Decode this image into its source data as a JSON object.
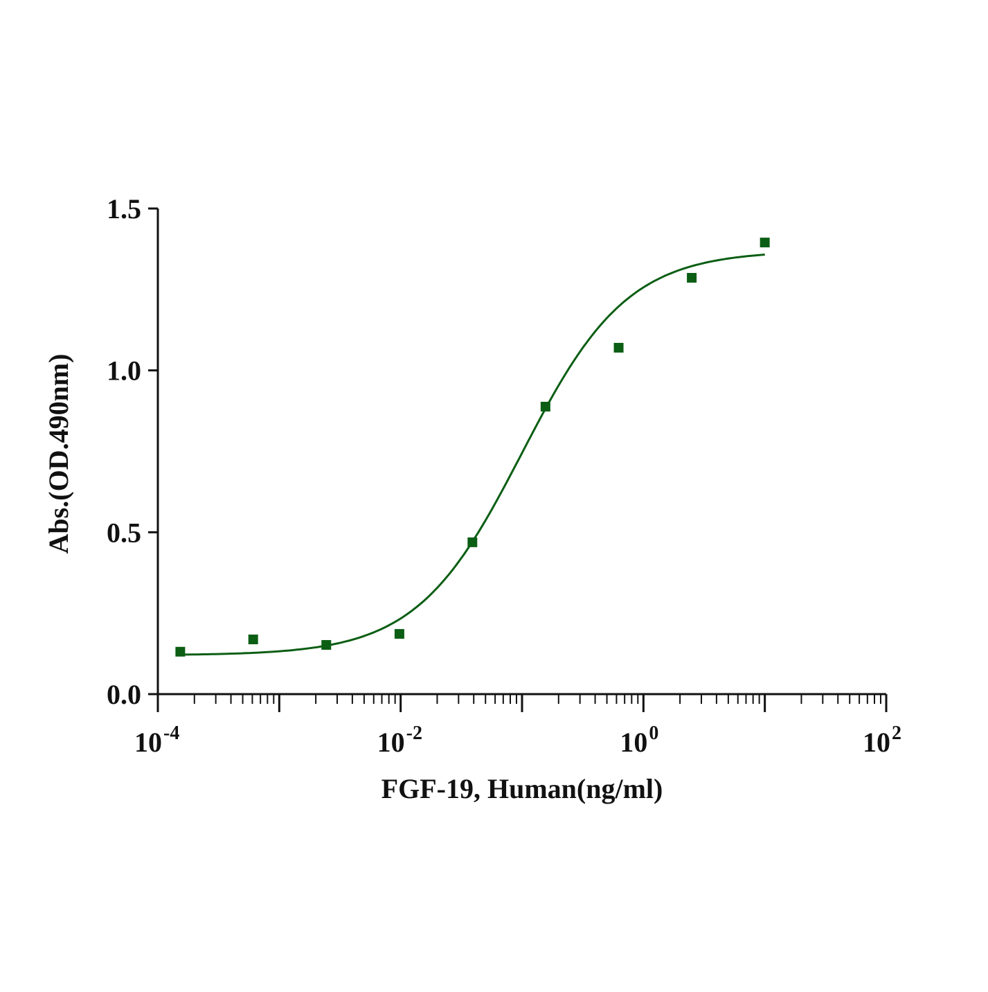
{
  "chart_data": {
    "type": "scatter",
    "title": "",
    "xlabel": "FGF-19, Human(ng/ml)",
    "ylabel": "Abs.(OD.490nm)",
    "xscale": "log",
    "xlim": [
      0.0001,
      100
    ],
    "ylim": [
      0,
      1.5
    ],
    "xticks": [
      {
        "value": 0.0001,
        "base": "10",
        "exp": "-4"
      },
      {
        "value": 0.01,
        "base": "10",
        "exp": "-2"
      },
      {
        "value": 1,
        "base": "10",
        "exp": "0"
      },
      {
        "value": 100,
        "base": "10",
        "exp": "2"
      }
    ],
    "yticks": [
      {
        "value": 0,
        "label": "0.0"
      },
      {
        "value": 0.5,
        "label": "0.5"
      },
      {
        "value": 1.0,
        "label": "1.0"
      },
      {
        "value": 1.5,
        "label": "1.5"
      }
    ],
    "grid": false,
    "legend": "none",
    "color": "#0b5e14",
    "series": [
      {
        "x": [
          0.000153,
          0.00061,
          0.00244,
          0.00977,
          0.039,
          0.156,
          0.625,
          2.5,
          10
        ],
        "y": [
          0.131,
          0.169,
          0.152,
          0.186,
          0.469,
          0.888,
          1.07,
          1.286,
          1.395
        ],
        "marker": "square",
        "fit": {
          "model": "4PL",
          "bottom": 0.12,
          "top": 1.37,
          "ec50": 0.1,
          "hill": 1.0
        }
      }
    ]
  }
}
